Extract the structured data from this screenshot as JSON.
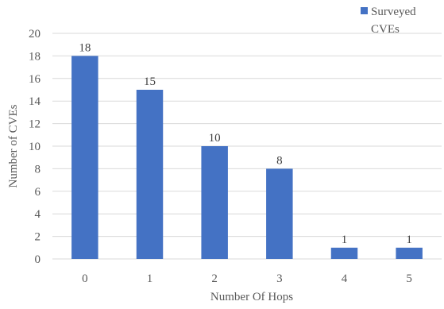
{
  "chart_data": {
    "type": "bar",
    "categories": [
      "0",
      "1",
      "2",
      "3",
      "4",
      "5"
    ],
    "series": [
      {
        "name": "Surveyed CVEs",
        "values": [
          18,
          15,
          10,
          8,
          1,
          1
        ]
      }
    ],
    "xlabel": "Number Of Hops",
    "ylabel": "Number of CVEs",
    "ylim": [
      0,
      20
    ],
    "yticks": [
      0,
      2,
      4,
      6,
      8,
      10,
      12,
      14,
      16,
      18,
      20
    ],
    "grid": true,
    "legend_position": "top-right",
    "legend_lines": [
      "Surveyed",
      "CVEs"
    ],
    "colors": {
      "bar": "#4472C4",
      "grid": "#D9D9D9",
      "text": "#595959"
    }
  }
}
